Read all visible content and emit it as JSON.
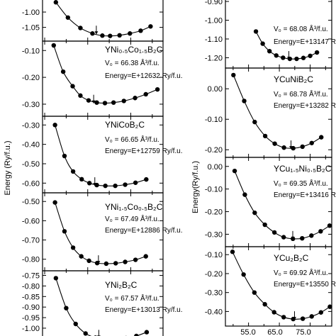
{
  "figure": {
    "ylabel_left": "Energy (Ry/f.u.)",
    "ylabel_right": "Energy(Ry/f.u.)",
    "x_tick_labels": [
      "55.0",
      "65.0",
      "75.0"
    ]
  },
  "chart_data": [
    {
      "type": "scatter",
      "column": "left",
      "compound": "",
      "v0": "",
      "energy": "",
      "yticks": [
        "-0.95",
        "-1.00",
        "-1.05"
      ],
      "ytick_values": [
        -0.95,
        -1.0,
        -1.05
      ],
      "ylim": [
        -1.095,
        -0.942
      ],
      "xlim": [
        54.5,
        82.5
      ],
      "marker_volume": 67.0,
      "x": [
        57.6,
        60.4,
        63.3,
        66.1,
        68.4,
        70.2,
        72.4,
        74.8,
        77.3,
        79.6
      ],
      "y": [
        -0.968,
        -1.018,
        -1.052,
        -1.07,
        -1.077,
        -1.078,
        -1.076,
        -1.07,
        -1.061,
        -1.047
      ]
    },
    {
      "type": "scatter",
      "column": "left",
      "compound": "YNi₀.₅Co₁.₅B₂C",
      "v0": "V₀ = 66.38 Å³/f.u.",
      "energy": "Energy=E+12632 Ry/f.u.",
      "yticks": [
        "-0.10",
        "-0.20",
        "-0.30"
      ],
      "ytick_values": [
        -0.1,
        -0.2,
        -0.3
      ],
      "ylim": [
        -0.345,
        -0.065
      ],
      "xlim": [
        54.5,
        82.5
      ],
      "marker_volume": 66.38,
      "x": [
        57.1,
        59.3,
        61.5,
        63.3,
        65.2,
        67.1,
        69.0,
        71.0,
        73.4,
        76.0,
        78.5,
        81.2
      ],
      "y": [
        -0.081,
        -0.179,
        -0.233,
        -0.268,
        -0.286,
        -0.294,
        -0.296,
        -0.294,
        -0.288,
        -0.277,
        -0.263,
        -0.245
      ]
    },
    {
      "type": "scatter",
      "column": "left",
      "compound": "YNiCoB₂C",
      "v0": "V₀ = 66.65 Å³/f.u.",
      "energy": "Energy=E+12759 Ry/f.u.",
      "yticks": [
        "-0.30",
        "-0.40",
        "-0.50",
        "-0.60"
      ],
      "ytick_values": [
        -0.3,
        -0.4,
        -0.5,
        -0.6
      ],
      "ylim": [
        -0.65,
        -0.255
      ],
      "xlim": [
        54.5,
        82.5
      ],
      "marker_volume": 66.65,
      "x": [
        57.4,
        59.6,
        61.6,
        63.6,
        65.4,
        67.1,
        69.1,
        71.4,
        73.7,
        76.1,
        78.6
      ],
      "y": [
        -0.3,
        -0.46,
        -0.54,
        -0.58,
        -0.6,
        -0.61,
        -0.614,
        -0.614,
        -0.608,
        -0.598,
        -0.581
      ]
    },
    {
      "type": "scatter",
      "column": "left",
      "compound": "YNi₁.₅Co₀.₅B₂C",
      "v0": "V₀ = 67.49 Å³/f.u.",
      "energy": "Energy=E+12886 Ry/f.u.",
      "yticks": [
        "-0.50",
        "-0.60",
        "-0.70",
        "-0.80"
      ],
      "ytick_values": [
        -0.5,
        -0.6,
        -0.7,
        -0.8
      ],
      "ylim": [
        -0.86,
        -0.455
      ],
      "xlim": [
        54.5,
        82.5
      ],
      "marker_volume": 67.49,
      "x": [
        57.4,
        59.6,
        61.6,
        63.5,
        65.3,
        67.2,
        69.3,
        71.5,
        73.7,
        76.1,
        78.5
      ],
      "y": [
        -0.505,
        -0.655,
        -0.74,
        -0.785,
        -0.808,
        -0.82,
        -0.823,
        -0.821,
        -0.814,
        -0.803,
        -0.785
      ]
    },
    {
      "type": "scatter",
      "column": "left",
      "compound": "YNi₂B₂C",
      "v0": "V₀ = 67.57 Å³/f.u.",
      "energy": "Energy=E+13013 Ry/f.u.",
      "yticks": [
        "-0.75",
        "-0.80",
        "-0.85",
        "-0.90",
        "-0.95",
        "-1.00",
        "-1.05"
      ],
      "ytick_values": [
        -0.75,
        -0.8,
        -0.85,
        -0.9,
        -0.95,
        -1.0,
        -1.05
      ],
      "ylim": [
        -1.064,
        -0.728
      ],
      "xlim": [
        54.5,
        82.5
      ],
      "marker_volume": 67.57,
      "x": [
        57.6,
        60.0,
        62.2,
        64.5,
        66.8,
        69.2,
        71.6,
        73.9,
        76.3,
        78.7
      ],
      "y": [
        -0.763,
        -0.905,
        -0.98,
        -1.025,
        -1.045,
        -1.053,
        -1.052,
        -1.047,
        -1.037,
        -1.019
      ]
    },
    {
      "type": "scatter",
      "column": "right",
      "compound": "",
      "v0": "V₀ = 68.08 Å³/f.u.",
      "energy": "Energy=E+13147 Ry/f.u.",
      "yticks": [
        "-0.90",
        "-1.00",
        "-1.10",
        "-1.20"
      ],
      "ytick_values": [
        -0.9,
        -1.0,
        -1.1,
        -1.2
      ],
      "ylim": [
        -1.255,
        -0.862
      ],
      "xlim": [
        47.5,
        82.0
      ],
      "marker_volume": 68.08,
      "x": [
        57.4,
        59.6,
        61.8,
        64.0,
        66.2,
        68.4,
        70.6,
        72.8,
        75.0,
        77.2
      ],
      "y": [
        -1.06,
        -1.125,
        -1.165,
        -1.188,
        -1.2,
        -1.206,
        -1.206,
        -1.201,
        -1.19,
        -1.172
      ]
    },
    {
      "type": "scatter",
      "column": "right",
      "compound": "YCuNiB₂C",
      "v0": "V₀ = 68.78 Å³/f.u.",
      "energy": "Energy=E+13282 Ry/f.u.",
      "yticks": [
        "0.00",
        "-0.10",
        "-0.20"
      ],
      "ytick_values": [
        0.0,
        -0.1,
        -0.2
      ],
      "ylim": [
        -0.225,
        0.068
      ],
      "xlim": [
        47.5,
        82.0
      ],
      "marker_volume": 68.78,
      "x": [
        50.1,
        53.6,
        57.0,
        60.4,
        63.5,
        66.5,
        69.5,
        72.5,
        75.5,
        78.6
      ],
      "y": [
        0.045,
        -0.04,
        -0.109,
        -0.155,
        -0.18,
        -0.193,
        -0.195,
        -0.19,
        -0.178,
        -0.159
      ]
    },
    {
      "type": "scatter",
      "column": "right",
      "compound": "YCu₁.₅Ni₀.₅B₂C",
      "v0": "V₀ = 69.35 Å³/f.u.",
      "energy": "Energy=E+13416 Ry/f.u.",
      "yticks": [
        "0.00",
        "-0.10",
        "-0.20",
        "-0.30"
      ],
      "ytick_values": [
        0.0,
        -0.1,
        -0.2,
        -0.3
      ],
      "ylim": [
        -0.355,
        0.04
      ],
      "xlim": [
        47.5,
        82.0
      ],
      "marker_volume": 69.35,
      "x": [
        50.5,
        53.8,
        57.0,
        60.3,
        63.4,
        66.4,
        69.4,
        72.4,
        75.4,
        78.4,
        81.3
      ],
      "y": [
        -0.02,
        -0.125,
        -0.205,
        -0.258,
        -0.292,
        -0.313,
        -0.32,
        -0.318,
        -0.306,
        -0.287,
        -0.262
      ]
    },
    {
      "type": "scatter",
      "column": "right",
      "compound": "YCu₂B₂C",
      "v0": "V₀ = 69.92 Å³/f.u.",
      "energy": "Energy=E+13550 Ry/f.u.",
      "yticks": [
        "-0.10",
        "-0.20",
        "-0.30",
        "-0.40"
      ],
      "ytick_values": [
        -0.1,
        -0.2,
        -0.3,
        -0.4
      ],
      "ylim": [
        -0.477,
        -0.058
      ],
      "xlim": [
        47.5,
        82.0
      ],
      "marker_volume": 69.92,
      "x": [
        49.8,
        53.4,
        56.9,
        60.3,
        63.3,
        66.4,
        69.5,
        72.6,
        75.5,
        78.5,
        81.4
      ],
      "y": [
        -0.085,
        -0.205,
        -0.3,
        -0.362,
        -0.404,
        -0.43,
        -0.44,
        -0.438,
        -0.426,
        -0.405,
        -0.375
      ]
    }
  ]
}
